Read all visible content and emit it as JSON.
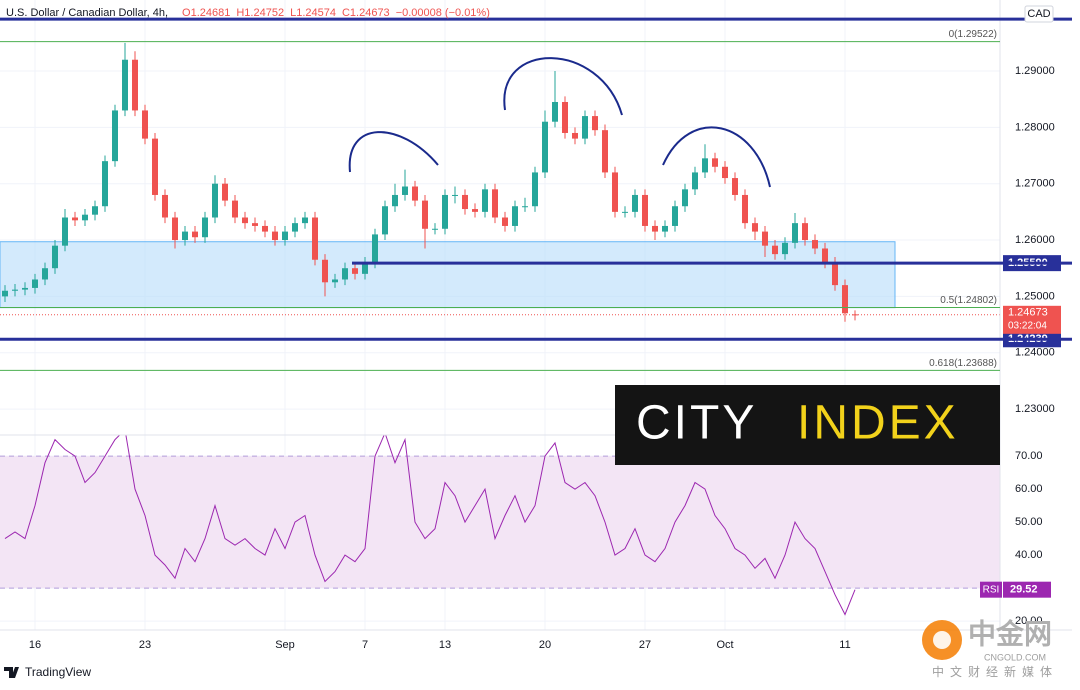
{
  "chart_data": [
    {
      "type": "candlestick",
      "title": "U.S. Dollar / Canadian Dollar, 4h,",
      "ohlc_header": [
        "O1.24681",
        "H1.24752",
        "L1.24574",
        "C1.24673",
        "−0.00008 (−0.01%)"
      ],
      "currency": "CAD",
      "countdown": "03:22:04",
      "categories": [
        null,
        null,
        null,
        "16",
        null,
        null,
        null,
        null,
        null,
        null,
        null,
        null,
        null,
        null,
        "23",
        null,
        null,
        null,
        null,
        null,
        null,
        null,
        null,
        null,
        null,
        null,
        null,
        null,
        "Sep",
        null,
        null,
        null,
        null,
        null,
        null,
        null,
        "7",
        null,
        null,
        null,
        null,
        null,
        null,
        null,
        "13",
        null,
        null,
        null,
        null,
        null,
        null,
        null,
        null,
        null,
        "20",
        null,
        null,
        null,
        null,
        null,
        null,
        null,
        null,
        null,
        "27",
        null,
        null,
        null,
        null,
        null,
        null,
        null,
        "Oct",
        null,
        null,
        null,
        null,
        null,
        null,
        null,
        null,
        null,
        null,
        null,
        "11",
        null
      ],
      "open": [
        1.25,
        1.251,
        1.2512,
        1.2515,
        1.253,
        1.255,
        1.259,
        1.264,
        1.2635,
        1.2645,
        1.266,
        1.274,
        1.283,
        1.292,
        1.283,
        1.278,
        1.268,
        1.264,
        1.26,
        1.2615,
        1.2605,
        1.264,
        1.27,
        1.267,
        1.264,
        1.263,
        1.2625,
        1.2615,
        1.26,
        1.2615,
        1.263,
        1.264,
        1.2565,
        1.2525,
        1.253,
        1.255,
        1.254,
        1.256,
        1.261,
        1.266,
        1.268,
        1.2695,
        1.267,
        1.262,
        1.262,
        1.268,
        1.268,
        1.2655,
        1.265,
        1.269,
        1.264,
        1.2625,
        1.266,
        1.266,
        1.272,
        1.281,
        1.2845,
        1.279,
        1.278,
        1.282,
        1.2795,
        1.272,
        1.265,
        1.265,
        1.268,
        1.2625,
        1.2615,
        1.2625,
        1.266,
        1.269,
        1.272,
        1.2745,
        1.273,
        1.271,
        1.268,
        1.263,
        1.2615,
        1.259,
        1.2575,
        1.2595,
        1.263,
        1.26,
        1.2585,
        1.256,
        1.252,
        1.24681
      ],
      "high": [
        1.252,
        1.2522,
        1.2525,
        1.254,
        1.256,
        1.26,
        1.2655,
        1.265,
        1.2655,
        1.267,
        1.275,
        1.284,
        1.295,
        1.2935,
        1.284,
        1.279,
        1.269,
        1.265,
        1.2625,
        1.2625,
        1.265,
        1.2715,
        1.271,
        1.268,
        1.265,
        1.264,
        1.2635,
        1.2625,
        1.2625,
        1.264,
        1.265,
        1.265,
        1.2575,
        1.254,
        1.256,
        1.256,
        1.257,
        1.262,
        1.267,
        1.27,
        1.2725,
        1.2705,
        1.268,
        1.263,
        1.269,
        1.2695,
        1.269,
        1.2665,
        1.27,
        1.27,
        1.265,
        1.267,
        1.2675,
        1.273,
        1.283,
        1.29,
        1.2855,
        1.28,
        1.283,
        1.283,
        1.2805,
        1.273,
        1.266,
        1.269,
        1.269,
        1.2635,
        1.2635,
        1.267,
        1.27,
        1.273,
        1.277,
        1.2755,
        1.274,
        1.272,
        1.269,
        1.264,
        1.2625,
        1.26,
        1.2605,
        1.2648,
        1.264,
        1.261,
        1.2595,
        1.257,
        1.253,
        1.24752
      ],
      "low": [
        1.249,
        1.25,
        1.2502,
        1.2505,
        1.252,
        1.254,
        1.258,
        1.2625,
        1.2625,
        1.2635,
        1.265,
        1.273,
        1.282,
        1.282,
        1.277,
        1.267,
        1.263,
        1.2585,
        1.259,
        1.2595,
        1.2595,
        1.263,
        1.266,
        1.263,
        1.262,
        1.2615,
        1.2605,
        1.259,
        1.259,
        1.2605,
        1.262,
        1.2555,
        1.25,
        1.2515,
        1.252,
        1.253,
        1.253,
        1.255,
        1.26,
        1.265,
        1.267,
        1.266,
        1.2585,
        1.261,
        1.261,
        1.2665,
        1.2645,
        1.264,
        1.264,
        1.263,
        1.2615,
        1.2615,
        1.265,
        1.265,
        1.271,
        1.28,
        1.278,
        1.277,
        1.277,
        1.2785,
        1.271,
        1.264,
        1.264,
        1.264,
        1.2615,
        1.26,
        1.2605,
        1.2615,
        1.265,
        1.268,
        1.271,
        1.272,
        1.27,
        1.267,
        1.262,
        1.26,
        1.257,
        1.2565,
        1.2565,
        1.2585,
        1.259,
        1.2575,
        1.255,
        1.251,
        1.2455,
        1.24574
      ],
      "close": [
        1.251,
        1.2512,
        1.2515,
        1.253,
        1.255,
        1.259,
        1.264,
        1.2635,
        1.2645,
        1.266,
        1.274,
        1.283,
        1.292,
        1.283,
        1.278,
        1.268,
        1.264,
        1.26,
        1.2615,
        1.2605,
        1.264,
        1.27,
        1.267,
        1.264,
        1.263,
        1.2625,
        1.2615,
        1.26,
        1.2615,
        1.263,
        1.264,
        1.2565,
        1.2525,
        1.253,
        1.255,
        1.254,
        1.256,
        1.261,
        1.266,
        1.268,
        1.2695,
        1.267,
        1.262,
        1.262,
        1.268,
        1.268,
        1.2655,
        1.265,
        1.269,
        1.264,
        1.2625,
        1.266,
        1.266,
        1.272,
        1.281,
        1.2845,
        1.279,
        1.278,
        1.282,
        1.2795,
        1.272,
        1.265,
        1.265,
        1.268,
        1.2625,
        1.2615,
        1.2625,
        1.266,
        1.269,
        1.272,
        1.2745,
        1.273,
        1.271,
        1.268,
        1.263,
        1.2615,
        1.259,
        1.2575,
        1.2595,
        1.263,
        1.26,
        1.2585,
        1.256,
        1.252,
        1.247,
        1.24673
      ],
      "up_color": "#26a69a",
      "down_color": "#ef5350",
      "ylim": [
        1.2254,
        1.3026
      ],
      "yticks": [
        {
          "value": 1.23,
          "label": "1.23000"
        },
        {
          "value": 1.24,
          "label": "1.24000"
        },
        {
          "value": 1.25,
          "label": "1.25000"
        },
        {
          "value": 1.26,
          "label": "1.26000"
        },
        {
          "value": 1.27,
          "label": "1.27000"
        },
        {
          "value": 1.28,
          "label": "1.28000"
        },
        {
          "value": 1.29,
          "label": "1.29000"
        }
      ],
      "grid": true,
      "zone": {
        "from": 1.248,
        "to": 1.2597,
        "color": "#bbdefb"
      },
      "levels": [
        {
          "value": 1.2992
        },
        {
          "value": 1.2559,
          "label": "1.25590"
        },
        {
          "value": 1.24239,
          "label": "1.24239"
        }
      ],
      "level_color": "#28309a",
      "fib_levels": [
        {
          "value": 1.29522,
          "label": "0(1.29522)"
        },
        {
          "value": 1.24802,
          "label": "0.5(1.24802)"
        },
        {
          "value": 1.23688,
          "label": "0.618(1.23688)"
        }
      ],
      "fib_color": "#4caf50"
    },
    {
      "type": "line",
      "name": "RSI",
      "color": "#9c27b0",
      "values": [
        45,
        47,
        45,
        55,
        68,
        75,
        72,
        70,
        62,
        65,
        70,
        75,
        78,
        60,
        52,
        40,
        37,
        33,
        42,
        38,
        45,
        55,
        45,
        43,
        45,
        42,
        40,
        48,
        42,
        50,
        52,
        40,
        32,
        35,
        40,
        38,
        42,
        70,
        77,
        68,
        75,
        50,
        45,
        48,
        62,
        58,
        50,
        55,
        60,
        45,
        52,
        58,
        50,
        55,
        70,
        74,
        62,
        60,
        62,
        58,
        50,
        40,
        42,
        48,
        40,
        38,
        42,
        50,
        55,
        62,
        60,
        52,
        48,
        42,
        40,
        36,
        39,
        33,
        40,
        50,
        45,
        42,
        35,
        28,
        22,
        29.52
      ],
      "ylim": [
        17.3,
        76.4
      ],
      "yticks": [
        {
          "value": 20,
          "label": "20.00"
        },
        {
          "value": 30,
          "label": "30.00"
        },
        {
          "value": 40,
          "label": "40.00"
        },
        {
          "value": 50,
          "label": "50.00"
        },
        {
          "value": 60,
          "label": "60.00"
        },
        {
          "value": 70,
          "label": "70.00"
        }
      ],
      "band": [
        30,
        70
      ],
      "band_color": "#f3e5f5"
    }
  ],
  "branding": {
    "logo_left": "CITY",
    "logo_right": "INDEX",
    "watermark_title": "中金网",
    "watermark_site": "CNGOLD.COM",
    "watermark_subtitle": "中文财经新媒体",
    "footer": "TradingView"
  }
}
